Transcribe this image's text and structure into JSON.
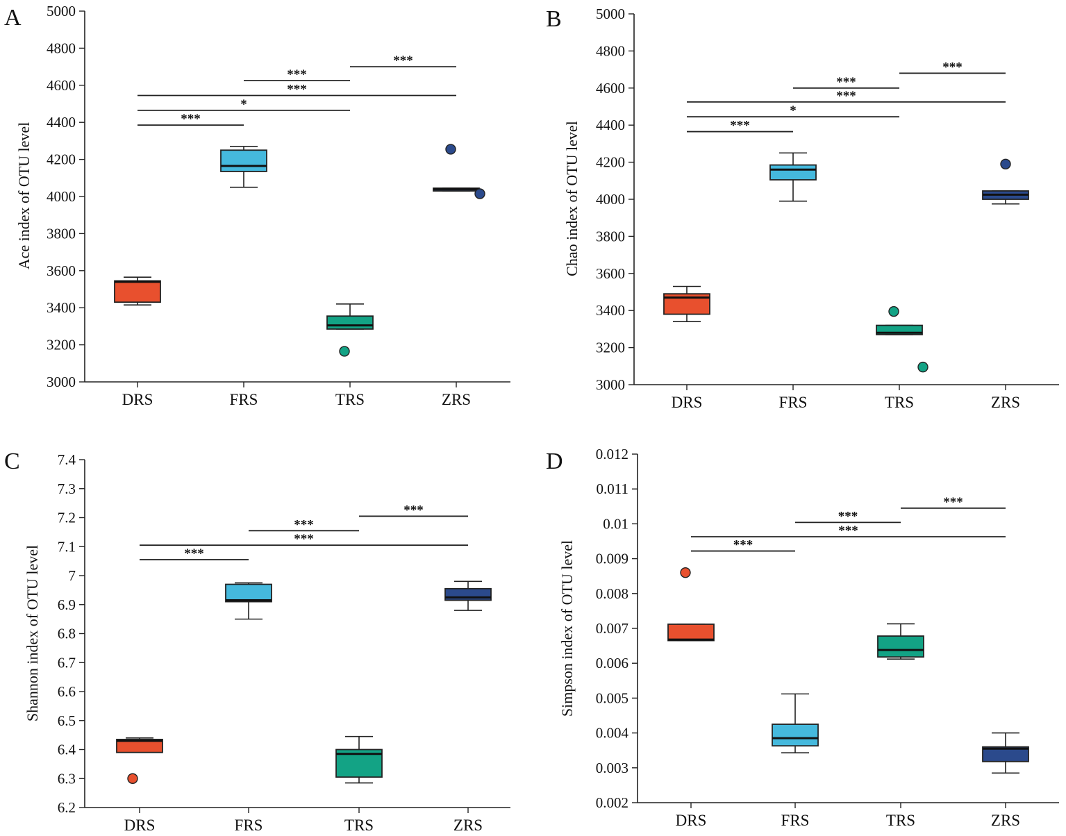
{
  "chart_data": [
    {
      "type": "box",
      "panel": "A",
      "ylabel": "Ace index of OTU level",
      "categories": [
        "DRS",
        "FRS",
        "TRS",
        "ZRS"
      ],
      "ylim": [
        3000,
        5000
      ],
      "yticks": [
        3000,
        3200,
        3400,
        3600,
        3800,
        4000,
        4200,
        4400,
        4600,
        4800,
        5000
      ],
      "ytick_labels": [
        "3000",
        "3200",
        "3400",
        "3600",
        "3800",
        "4000",
        "4200",
        "4400",
        "4600",
        "4800",
        "5000"
      ],
      "boxes": [
        {
          "category": "DRS",
          "color": "#e8502e",
          "whisker_low": 3415,
          "q1": 3430,
          "median": 3540,
          "q3": 3545,
          "whisker_high": 3565,
          "outliers": []
        },
        {
          "category": "FRS",
          "color": "#45b9dd",
          "whisker_low": 4050,
          "q1": 4135,
          "median": 4165,
          "q3": 4250,
          "whisker_high": 4270,
          "outliers": []
        },
        {
          "category": "TRS",
          "color": "#13a385",
          "whisker_low": 3285,
          "q1": 3285,
          "median": 3305,
          "q3": 3355,
          "whisker_high": 3420,
          "outliers": [
            3165
          ]
        },
        {
          "category": "ZRS",
          "color": "#2b4a8c",
          "whisker_low": 4030,
          "q1": 4030,
          "median": 4040,
          "q3": 4045,
          "whisker_high": 4045,
          "outliers": [
            4255,
            4015
          ]
        }
      ],
      "significance": [
        {
          "from": "DRS",
          "to": "FRS",
          "y": 4385,
          "label": "***"
        },
        {
          "from": "DRS",
          "to": "TRS",
          "y": 4465,
          "label": "*"
        },
        {
          "from": "DRS",
          "to": "ZRS",
          "y": 4545,
          "label": "***"
        },
        {
          "from": "FRS",
          "to": "TRS",
          "y": 4625,
          "label": "***"
        },
        {
          "from": "TRS",
          "to": "ZRS",
          "y": 4700,
          "label": "***"
        }
      ]
    },
    {
      "type": "box",
      "panel": "B",
      "ylabel": "Chao index of OTU level",
      "categories": [
        "DRS",
        "FRS",
        "TRS",
        "ZRS"
      ],
      "ylim": [
        3000,
        5000
      ],
      "yticks": [
        3000,
        3200,
        3400,
        3600,
        3800,
        4000,
        4200,
        4400,
        4600,
        4800,
        5000
      ],
      "ytick_labels": [
        "3000",
        "3200",
        "3400",
        "3600",
        "3800",
        "4000",
        "4200",
        "4400",
        "4600",
        "4800",
        "5000"
      ],
      "boxes": [
        {
          "category": "DRS",
          "color": "#e8502e",
          "whisker_low": 3340,
          "q1": 3380,
          "median": 3470,
          "q3": 3490,
          "whisker_high": 3530,
          "outliers": []
        },
        {
          "category": "FRS",
          "color": "#45b9dd",
          "whisker_low": 3990,
          "q1": 4105,
          "median": 4160,
          "q3": 4185,
          "whisker_high": 4250,
          "outliers": []
        },
        {
          "category": "TRS",
          "color": "#13a385",
          "whisker_low": 3270,
          "q1": 3270,
          "median": 3280,
          "q3": 3320,
          "whisker_high": 3320,
          "outliers": [
            3395,
            3095
          ]
        },
        {
          "category": "ZRS",
          "color": "#2b4a8c",
          "whisker_low": 3975,
          "q1": 4000,
          "median": 4025,
          "q3": 4045,
          "whisker_high": 4045,
          "outliers": [
            4190
          ]
        }
      ],
      "significance": [
        {
          "from": "DRS",
          "to": "FRS",
          "y": 4365,
          "label": "***"
        },
        {
          "from": "DRS",
          "to": "TRS",
          "y": 4445,
          "label": "*"
        },
        {
          "from": "DRS",
          "to": "ZRS",
          "y": 4525,
          "label": "***"
        },
        {
          "from": "FRS",
          "to": "TRS",
          "y": 4600,
          "label": "***"
        },
        {
          "from": "TRS",
          "to": "ZRS",
          "y": 4680,
          "label": "***"
        }
      ]
    },
    {
      "type": "box",
      "panel": "C",
      "ylabel": "Shannon index of OTU level",
      "categories": [
        "DRS",
        "FRS",
        "TRS",
        "ZRS"
      ],
      "ylim": [
        6.2,
        7.4
      ],
      "yticks": [
        6.2,
        6.3,
        6.4,
        6.5,
        6.6,
        6.7,
        6.8,
        6.9,
        7.0,
        7.1,
        7.2,
        7.3,
        7.4
      ],
      "ytick_labels": [
        "6.2",
        "6.3",
        "6.4",
        "6.5",
        "6.6",
        "6.7",
        "6.8",
        "6.9",
        "7",
        "7.1",
        "7.2",
        "7.3",
        "7.4"
      ],
      "boxes": [
        {
          "category": "DRS",
          "color": "#e8502e",
          "whisker_low": 6.39,
          "q1": 6.39,
          "median": 6.43,
          "q3": 6.435,
          "whisker_high": 6.44,
          "outliers": [
            6.3
          ]
        },
        {
          "category": "FRS",
          "color": "#45b9dd",
          "whisker_low": 6.85,
          "q1": 6.91,
          "median": 6.915,
          "q3": 6.97,
          "whisker_high": 6.975,
          "outliers": []
        },
        {
          "category": "TRS",
          "color": "#13a385",
          "whisker_low": 6.285,
          "q1": 6.305,
          "median": 6.385,
          "q3": 6.4,
          "whisker_high": 6.445,
          "outliers": []
        },
        {
          "category": "ZRS",
          "color": "#2b4a8c",
          "whisker_low": 6.88,
          "q1": 6.915,
          "median": 6.925,
          "q3": 6.955,
          "whisker_high": 6.98,
          "outliers": []
        }
      ],
      "significance": [
        {
          "from": "DRS",
          "to": "FRS",
          "y": 7.055,
          "label": "***"
        },
        {
          "from": "DRS",
          "to": "ZRS",
          "y": 7.105,
          "label": "***"
        },
        {
          "from": "FRS",
          "to": "TRS",
          "y": 7.155,
          "label": "***"
        },
        {
          "from": "TRS",
          "to": "ZRS",
          "y": 7.205,
          "label": "***"
        }
      ]
    },
    {
      "type": "box",
      "panel": "D",
      "ylabel": "Simpson index of OTU level",
      "categories": [
        "DRS",
        "FRS",
        "TRS",
        "ZRS"
      ],
      "ylim": [
        0.002,
        0.012
      ],
      "yticks": [
        0.002,
        0.003,
        0.004,
        0.005,
        0.006,
        0.007,
        0.008,
        0.009,
        0.01,
        0.011,
        0.012
      ],
      "ytick_labels": [
        "0.002",
        "0.003",
        "0.004",
        "0.005",
        "0.006",
        "0.007",
        "0.008",
        "0.009",
        "0.01",
        "0.011",
        "0.012"
      ],
      "boxes": [
        {
          "category": "DRS",
          "color": "#e8502e",
          "whisker_low": 0.00665,
          "q1": 0.00665,
          "median": 0.00668,
          "q3": 0.00712,
          "whisker_high": 0.00712,
          "outliers": [
            0.0086
          ]
        },
        {
          "category": "FRS",
          "color": "#45b9dd",
          "whisker_low": 0.00343,
          "q1": 0.00363,
          "median": 0.00385,
          "q3": 0.00425,
          "whisker_high": 0.00512,
          "outliers": []
        },
        {
          "category": "TRS",
          "color": "#13a385",
          "whisker_low": 0.00612,
          "q1": 0.00618,
          "median": 0.00638,
          "q3": 0.00678,
          "whisker_high": 0.00713,
          "outliers": []
        },
        {
          "category": "ZRS",
          "color": "#2b4a8c",
          "whisker_low": 0.00285,
          "q1": 0.00318,
          "median": 0.00355,
          "q3": 0.0036,
          "whisker_high": 0.004,
          "outliers": []
        }
      ],
      "significance": [
        {
          "from": "DRS",
          "to": "FRS",
          "y": 0.00922,
          "label": "***"
        },
        {
          "from": "DRS",
          "to": "ZRS",
          "y": 0.00963,
          "label": "***"
        },
        {
          "from": "FRS",
          "to": "TRS",
          "y": 0.01004,
          "label": "***"
        },
        {
          "from": "TRS",
          "to": "ZRS",
          "y": 0.01045,
          "label": "***"
        }
      ]
    }
  ]
}
